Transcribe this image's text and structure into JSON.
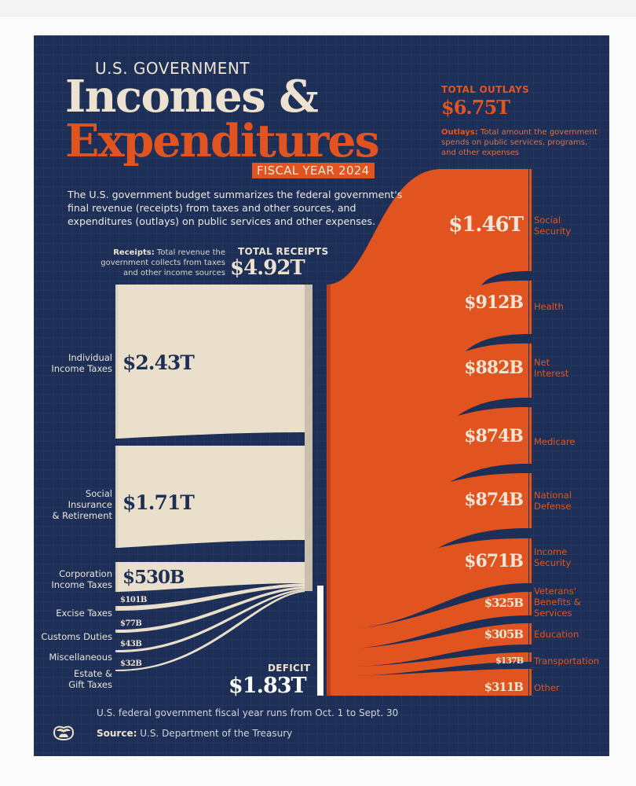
{
  "header": {
    "kicker": "U.S. GOVERNMENT",
    "title_line1": "Incomes &",
    "title_line2": "Expenditures",
    "fiscal_year_badge": "FISCAL YEAR 2024",
    "intro": "The U.S. government budget summarizes the federal government's final revenue (receipts) from taxes and other sources, and expenditures (outlays) on public services and other expenses."
  },
  "outlays_summary": {
    "label": "TOTAL OUTLAYS",
    "value": "$6.75T",
    "desc_bold": "Outlays:",
    "desc": " Total amount the government spends on public services, programs, and other expenses"
  },
  "receipts_summary": {
    "label": "TOTAL RECEIPTS",
    "value": "$4.92T",
    "desc_bold": "Receipts:",
    "desc": " Total revenue the government collects from taxes and other income sources"
  },
  "deficit": {
    "label": "DEFICIT",
    "value": "$1.83T"
  },
  "footer": {
    "note": "U.S. federal government fiscal year runs from Oct. 1 to Sept. 30",
    "source_bold": "Source:",
    "source": " U.S. Department of the Treasury",
    "logo_icon": "visual-capitalist-logo-icon"
  },
  "colors": {
    "background": "#1d2f57",
    "receipts": "#e9dfcb",
    "outlays": "#e2541f",
    "deficit": "#ffffff",
    "title_cream": "#ece2cf"
  },
  "chart_data": {
    "type": "sankey",
    "title": "U.S. Government Incomes & Expenditures, Fiscal Year 2024",
    "unit": "USD",
    "receipts": {
      "total": "$4.92T",
      "categories": [
        "Individual Income Taxes",
        "Social Insurance & Retirement",
        "Corporation Income Taxes",
        "Excise Taxes",
        "Customs Duties",
        "Miscellaneous",
        "Estate & Gift Taxes"
      ],
      "labels": [
        "$2.43T",
        "$1.71T",
        "$530B",
        "$101B",
        "$77B",
        "$43B",
        "$32B"
      ],
      "values_billions": [
        2430,
        1710,
        530,
        101,
        77,
        43,
        32
      ]
    },
    "outlays": {
      "total": "$6.75T",
      "categories": [
        "Social Security",
        "Health",
        "Net Interest",
        "Medicare",
        "National Defense",
        "Income Security",
        "Veterans' Benefits & Services",
        "Education",
        "Transportation",
        "Other"
      ],
      "labels": [
        "$1.46T",
        "$912B",
        "$882B",
        "$874B",
        "$874B",
        "$671B",
        "$325B",
        "$305B",
        "$137B",
        "$311B"
      ],
      "values_billions": [
        1460,
        912,
        882,
        874,
        874,
        671,
        325,
        305,
        137,
        311
      ]
    },
    "deficit_billions": 1830,
    "deficit_label": "$1.83T"
  },
  "receipts": [
    {
      "label": "Individual\nIncome Taxes",
      "value": "$2.43T"
    },
    {
      "label": "Social\nInsurance\n& Retirement",
      "value": "$1.71T"
    },
    {
      "label": "Corporation\nIncome Taxes",
      "value": "$530B"
    },
    {
      "label": "Excise Taxes",
      "value": "$101B"
    },
    {
      "label": "Customs Duties",
      "value": "$77B"
    },
    {
      "label": "Miscellaneous",
      "value": "$43B"
    },
    {
      "label": "Estate &\nGift Taxes",
      "value": "$32B"
    }
  ],
  "outlays": [
    {
      "label": "Social\nSecurity",
      "value": "$1.46T"
    },
    {
      "label": "Health",
      "value": "$912B"
    },
    {
      "label": "Net\nInterest",
      "value": "$882B"
    },
    {
      "label": "Medicare",
      "value": "$874B"
    },
    {
      "label": "National\nDefense",
      "value": "$874B"
    },
    {
      "label": "Income\nSecurity",
      "value": "$671B"
    },
    {
      "label": "Veterans'\nBenefits &\nServices",
      "value": "$325B"
    },
    {
      "label": "Education",
      "value": "$305B"
    },
    {
      "label": "Transportation",
      "value": "$137B"
    },
    {
      "label": "Other",
      "value": "$311B"
    }
  ]
}
